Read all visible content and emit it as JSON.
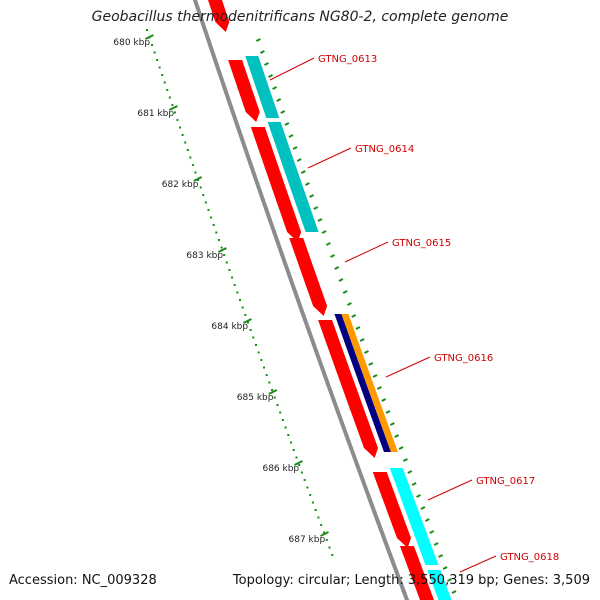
{
  "title": "Geobacillus thermodenitrificans NG80-2, complete genome",
  "footer": {
    "accession": "Accession: NC_009328",
    "summary": "Topology: circular; Length: 3,550,319 bp; Genes: 3,509"
  },
  "colors": {
    "backbone": "#8c8c8c",
    "cds_forward": "#ff0000",
    "cds_reverse": "#ff0000",
    "blast_hit_a": "#00c0c0",
    "blast_hit_b": "#00ffff",
    "gc_skew": "#000080",
    "gc_content": "#ff9900",
    "tick": "#1a8a1a",
    "label": "#d00000"
  },
  "scale": {
    "unit": "kbp",
    "ticks": [
      "680 kbp",
      "681 kbp",
      "682 kbp",
      "683 kbp",
      "684 kbp",
      "685 kbp",
      "686 kbp",
      "687 kbp"
    ]
  },
  "genes": [
    "GTNG_0613",
    "GTNG_0614",
    "GTNG_0615",
    "GTNG_0616",
    "GTNG_0617",
    "GTNG_0618"
  ]
}
